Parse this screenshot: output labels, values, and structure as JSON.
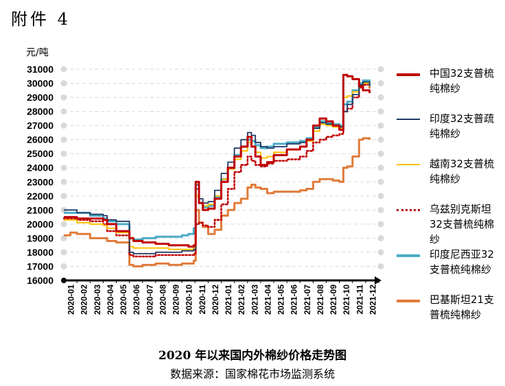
{
  "header": {
    "annex": "附件 4"
  },
  "chart_data": {
    "type": "line",
    "title": "2020 年以来国内外棉纱价格走势图",
    "source": "数据来源：国家棉花市场监测系统",
    "ylabel": "元/吨",
    "ylim": [
      16000,
      31000
    ],
    "yticks": [
      "16000",
      "17000",
      "18000",
      "19000",
      "20000",
      "21000",
      "22000",
      "23000",
      "24000",
      "25000",
      "26000",
      "27000",
      "28000",
      "29000",
      "30000",
      "31000"
    ],
    "x_categories": [
      "2020-01",
      "2020-02",
      "2020-03",
      "2020-04",
      "2020-05",
      "2020-06",
      "2020-07",
      "2020-08",
      "2020-09",
      "2020-10",
      "2020-11",
      "2020-12",
      "2021-01",
      "2021-02",
      "2021-03",
      "2021-04",
      "2021-05",
      "2021-06",
      "2021-07",
      "2021-08",
      "2021-09",
      "2021-10",
      "2021-11",
      "2021-12"
    ],
    "grid": "horizontal dashed",
    "legend_position": "right",
    "series": [
      {
        "name": "中国32支普梳纯棉纱",
        "color": "#c00000",
        "style": "solid",
        "x": [
          0,
          0.5,
          1,
          2,
          3,
          3.3,
          4,
          5,
          5.3,
          6,
          7,
          8,
          9,
          9.5,
          9.9,
          10.05,
          10.3,
          10.6,
          11,
          11.5,
          12,
          12.5,
          13,
          13.5,
          14,
          14.3,
          14.6,
          15,
          15.5,
          16,
          17,
          18,
          18.5,
          19,
          19.5,
          20,
          20.5,
          21,
          21.3,
          21.6,
          22,
          22.5,
          22.8,
          23.3
        ],
        "values": [
          20500,
          20500,
          20400,
          20400,
          20300,
          20000,
          19500,
          19000,
          18800,
          18700,
          18600,
          18500,
          18500,
          18400,
          18500,
          23000,
          21500,
          21000,
          21100,
          21800,
          23000,
          24000,
          24800,
          25500,
          26200,
          25500,
          24800,
          24200,
          24400,
          24900,
          25300,
          25500,
          26000,
          27000,
          27500,
          27300,
          27000,
          26700,
          30600,
          30500,
          30300,
          29800,
          29500,
          29300
        ]
      },
      {
        "name": "印度32支普疏纯棉纱",
        "color": "#1f3864",
        "style": "solid",
        "x": [
          0,
          0.5,
          1,
          2,
          3,
          3.3,
          4,
          5,
          5.3,
          6,
          7,
          8,
          9,
          9.5,
          9.9,
          10.05,
          10.3,
          10.6,
          11,
          11.5,
          12,
          12.5,
          13,
          13.5,
          14,
          14.3,
          14.6,
          15,
          15.5,
          16,
          17,
          18,
          18.5,
          19,
          19.5,
          20,
          20.5,
          21,
          21.3,
          21.6,
          22,
          22.5,
          22.8,
          23.3
        ],
        "values": [
          21000,
          21000,
          20800,
          20700,
          20600,
          20300,
          20200,
          18000,
          17900,
          17900,
          18000,
          18000,
          18100,
          18100,
          18200,
          22500,
          21800,
          21500,
          21600,
          22400,
          23600,
          24400,
          25400,
          26000,
          26500,
          26300,
          25800,
          25500,
          25400,
          25500,
          25700,
          25800,
          26000,
          26800,
          27200,
          27100,
          27000,
          26900,
          28000,
          28500,
          29200,
          29900,
          30100,
          29800
        ]
      },
      {
        "name": "越南32支普梳纯棉纱",
        "color": "#ffc000",
        "style": "solid",
        "x": [
          0,
          0.5,
          1,
          2,
          3,
          3.3,
          4,
          5,
          5.3,
          6,
          7,
          8,
          9,
          9.5,
          9.9,
          10.05,
          10.3,
          10.6,
          11,
          11.5,
          12,
          12.5,
          13,
          13.5,
          14,
          14.3,
          14.6,
          15,
          15.5,
          16,
          17,
          18,
          18.5,
          19,
          19.5,
          20,
          20.5,
          21,
          21.3,
          21.6,
          22,
          22.5,
          22.8,
          23.3
        ],
        "values": [
          20300,
          20300,
          20100,
          20000,
          19900,
          19700,
          19400,
          18400,
          18300,
          18300,
          18300,
          18200,
          18200,
          18200,
          18300,
          22000,
          21500,
          21300,
          21400,
          22000,
          23200,
          23900,
          24600,
          25200,
          25800,
          25500,
          25100,
          24700,
          24800,
          25100,
          25300,
          25500,
          25900,
          26600,
          27100,
          27000,
          26900,
          26800,
          29000,
          29100,
          29400,
          29800,
          30000,
          29700
        ]
      },
      {
        "name": "乌兹别克斯坦32支普梳纯棉纱",
        "color": "#c00000",
        "style": "dotted",
        "x": [
          0,
          0.5,
          1,
          2,
          3,
          3.3,
          4,
          5,
          5.3,
          6,
          7,
          8,
          9,
          9.5,
          9.9,
          10.05,
          10.3,
          10.6,
          11,
          11.5,
          12,
          12.5,
          13,
          13.5,
          14,
          14.3,
          14.6,
          15,
          15.5,
          16,
          17,
          18,
          18.5,
          19,
          19.5,
          20,
          20.5,
          21,
          21.3,
          21.6,
          22,
          22.5,
          22.8,
          23.3
        ],
        "values": [
          20400,
          20400,
          20300,
          20200,
          20000,
          19500,
          19200,
          17800,
          17700,
          17700,
          17800,
          17800,
          17800,
          17800,
          17900,
          20000,
          20100,
          19900,
          19800,
          20300,
          21400,
          22500,
          23700,
          24200,
          24800,
          24500,
          24200,
          24100,
          24300,
          24500,
          24600,
          24800,
          25200,
          25800,
          26000,
          26200,
          26300,
          26400,
          28000,
          28200,
          29000,
          29700,
          29900,
          29700
        ]
      },
      {
        "name": "印度尼西亚32支普梳纯棉纱",
        "color": "#4bacc6",
        "style": "solid",
        "x": [
          0,
          0.5,
          1,
          2,
          3,
          3.3,
          4,
          5,
          5.3,
          6,
          7,
          8,
          9,
          9.5,
          9.9,
          10.05,
          10.3,
          10.6,
          11,
          11.5,
          12,
          12.5,
          13,
          13.5,
          14,
          14.3,
          14.6,
          15,
          15.5,
          16,
          17,
          18,
          18.5,
          19,
          19.5,
          20,
          20.5,
          21,
          21.3,
          21.6,
          22,
          22.5,
          22.8,
          23.3
        ],
        "values": [
          20800,
          20800,
          20800,
          20600,
          20400,
          20200,
          20000,
          19000,
          18900,
          19000,
          19100,
          19100,
          19200,
          19300,
          19700,
          22800,
          21500,
          21200,
          21300,
          21900,
          23200,
          24000,
          24900,
          25500,
          26000,
          25900,
          25600,
          25400,
          25500,
          25700,
          25800,
          25900,
          26100,
          26900,
          27300,
          27200,
          27100,
          27000,
          28500,
          28700,
          29500,
          30000,
          30200,
          29800
        ]
      },
      {
        "name": "巴基斯坦21支普梳纯棉纱",
        "color": "#e07b39",
        "style": "solid",
        "x": [
          0,
          0.5,
          1,
          2,
          3,
          3.3,
          4,
          5,
          5.3,
          6,
          7,
          8,
          9,
          9.5,
          9.9,
          10.05,
          10.3,
          10.6,
          11,
          11.5,
          12,
          12.5,
          13,
          13.5,
          14,
          14.3,
          14.6,
          15,
          15.5,
          16,
          17,
          18,
          18.5,
          19,
          19.5,
          20,
          20.5,
          21,
          21.3,
          21.6,
          22,
          22.5,
          22.8,
          23.3
        ],
        "values": [
          19200,
          19400,
          19300,
          19000,
          19000,
          18800,
          18700,
          17100,
          17000,
          17100,
          17200,
          17100,
          17200,
          17200,
          17400,
          21000,
          20100,
          19800,
          19300,
          19600,
          20600,
          21000,
          21500,
          21800,
          22600,
          22800,
          22600,
          22500,
          22200,
          22300,
          22300,
          22400,
          22500,
          23000,
          23200,
          23200,
          23100,
          23000,
          24000,
          24100,
          24800,
          26000,
          26100,
          26000
        ]
      }
    ]
  }
}
